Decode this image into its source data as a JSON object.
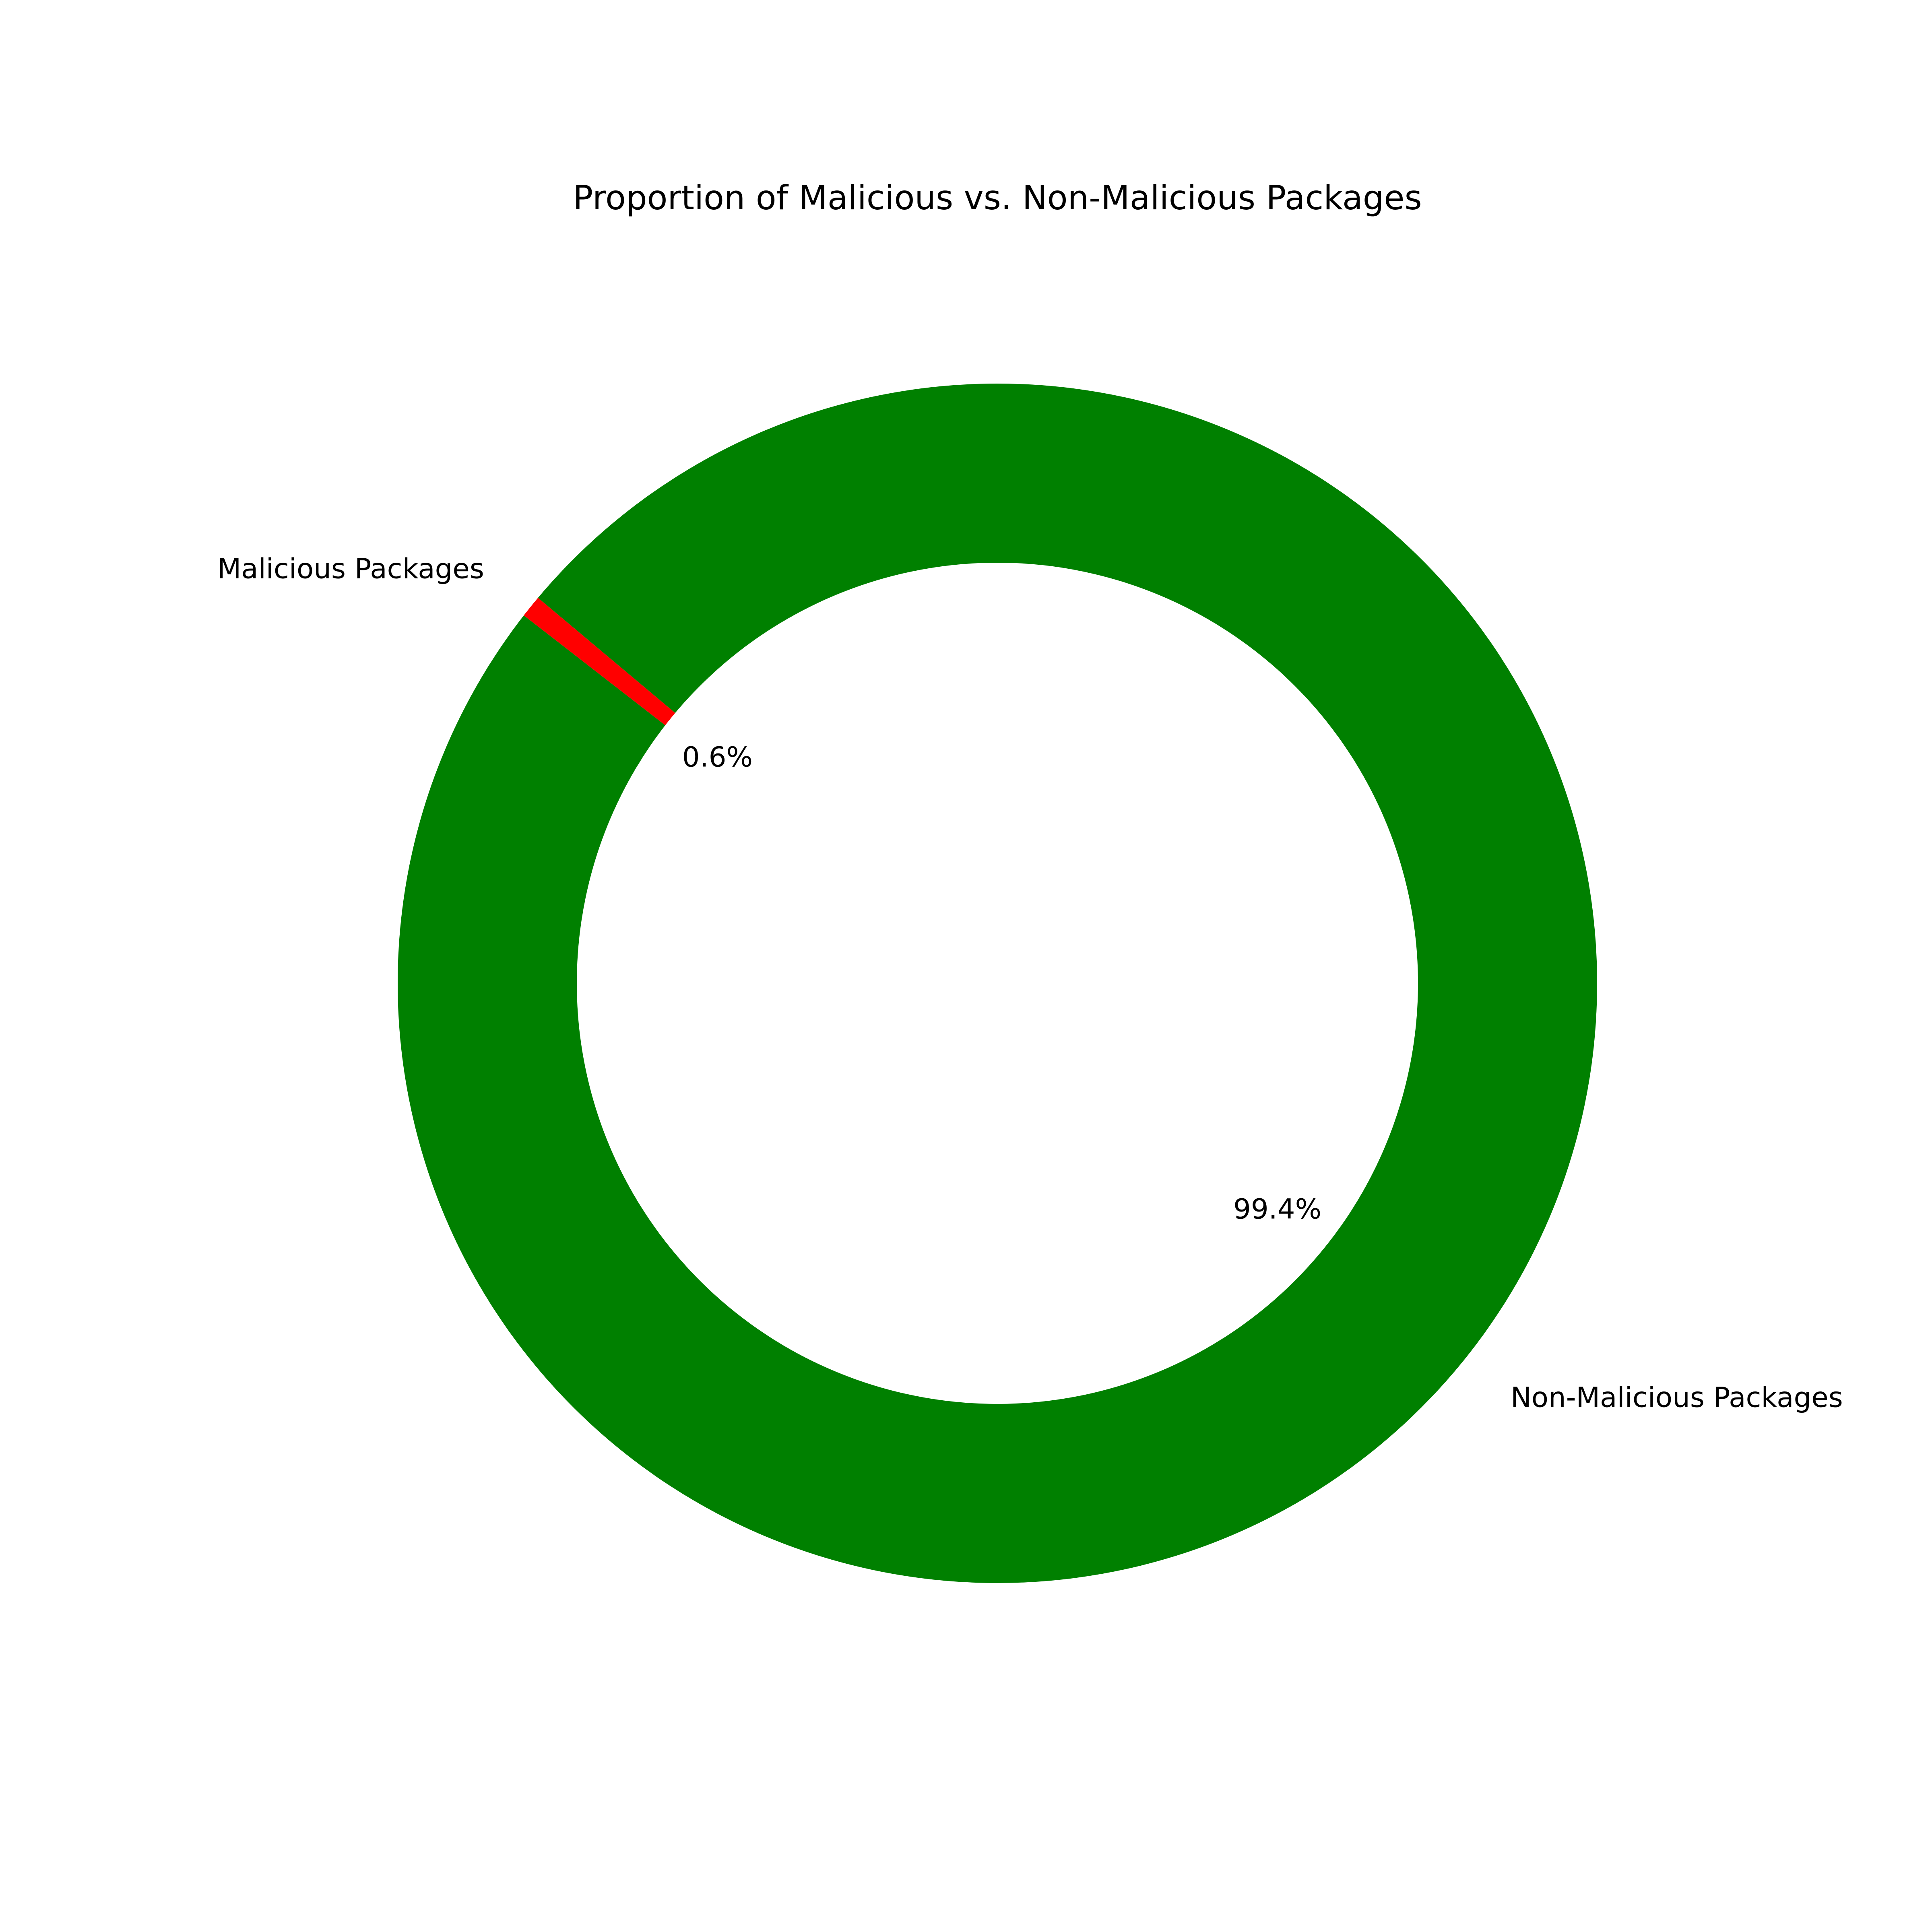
{
  "chart_data": {
    "type": "pie",
    "title": "Proportion of Malicious vs. Non-Malicious Packages",
    "categories": [
      "Malicious Packages",
      "Non-Malicious Packages"
    ],
    "values": [
      0.6,
      99.4
    ],
    "value_labels": [
      "0.6%",
      "99.4%"
    ],
    "colors": [
      "#ff0000",
      "#008000"
    ],
    "donut": true,
    "background": "#ffffff"
  }
}
